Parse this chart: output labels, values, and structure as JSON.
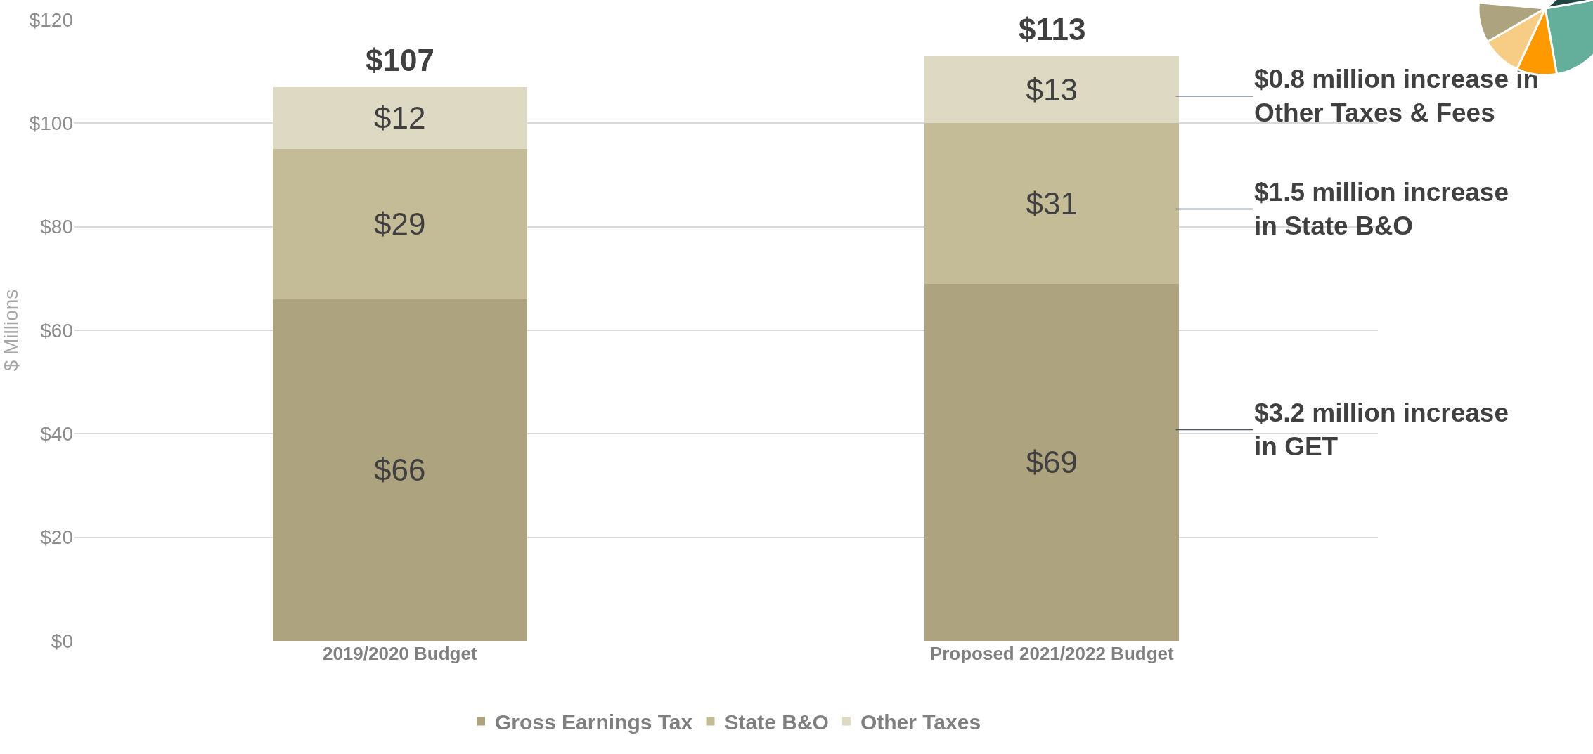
{
  "chart_data": {
    "type": "bar",
    "stacked": true,
    "ylabel": "$ Millions",
    "categories": [
      "2019/2020 Budget",
      "Proposed 2021/2022 Budget"
    ],
    "series": [
      {
        "name": "Gross Earnings Tax",
        "color": "#ada37f",
        "values": [
          66,
          69
        ],
        "value_labels": [
          "$66",
          "$69"
        ]
      },
      {
        "name": "State B&O",
        "color": "#c4bc97",
        "values": [
          29,
          31
        ],
        "value_labels": [
          "$29",
          "$31"
        ]
      },
      {
        "name": "Other Taxes",
        "color": "#ddd9c3",
        "values": [
          12,
          13
        ],
        "value_labels": [
          "$12",
          "$13"
        ]
      }
    ],
    "totals": [
      "$107",
      "$113"
    ],
    "ylim": [
      0,
      120
    ],
    "yticks": [
      {
        "value": 0,
        "label": "$0"
      },
      {
        "value": 20,
        "label": "$20"
      },
      {
        "value": 40,
        "label": "$40"
      },
      {
        "value": 60,
        "label": "$60"
      },
      {
        "value": 80,
        "label": "$80"
      },
      {
        "value": 100,
        "label": "$100"
      },
      {
        "value": 120,
        "label": "$120"
      }
    ],
    "grid": "y",
    "legend": "bottom",
    "annotations": [
      "$0.8 million increase in\nOther Taxes & Fees",
      "$1.5 million increase\nin State B&O",
      "$3.2 million increase\nin GET"
    ]
  }
}
